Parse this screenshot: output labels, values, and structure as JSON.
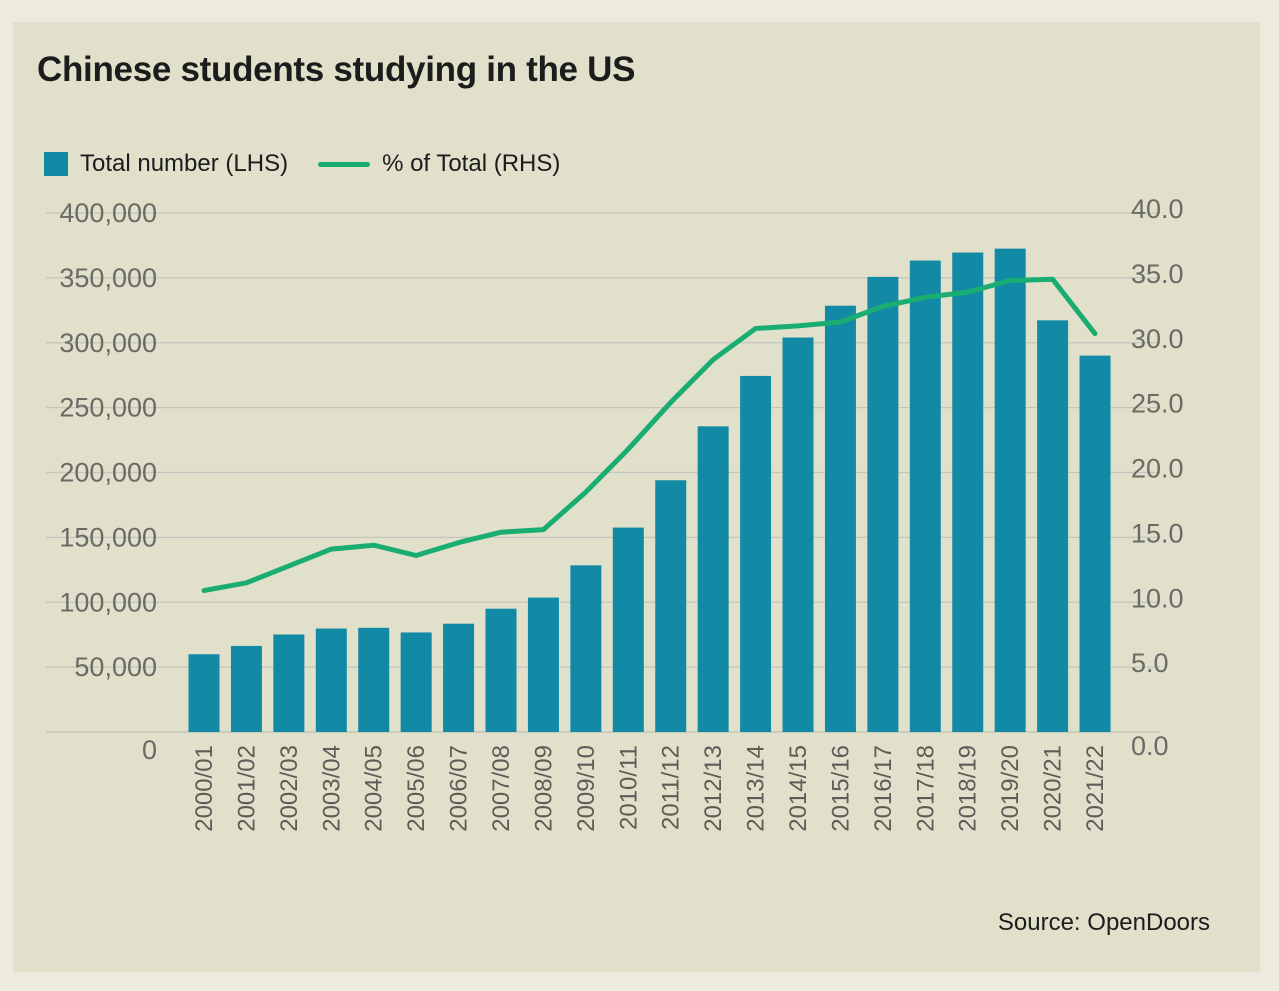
{
  "chart_data": {
    "type": "bar",
    "title": "Chinese students studying in the US",
    "legend": {
      "bar_label": "Total number (LHS)",
      "line_label": "% of Total (RHS)",
      "placement": "top-left"
    },
    "source": "Source: OpenDoors",
    "categories": [
      "2000/01",
      "2001/02",
      "2002/03",
      "2003/04",
      "2004/05",
      "2005/06",
      "2006/07",
      "2007/08",
      "2008/09",
      "2009/10",
      "2010/11",
      "2011/12",
      "2012/13",
      "2013/14",
      "2014/15",
      "2015/16",
      "2016/17",
      "2017/18",
      "2018/19",
      "2019/20",
      "2020/21",
      "2021/22"
    ],
    "series": [
      {
        "name": "Total number (LHS)",
        "type": "bar",
        "axis": "left",
        "values": [
          59939,
          66346,
          75157,
          79738,
          80314,
          76723,
          83467,
          95035,
          103596,
          128475,
          157558,
          194032,
          235597,
          274439,
          304040,
          328547,
          350755,
          363341,
          369548,
          372532,
          317299,
          290086
        ]
      },
      {
        "name": "% of Total (RHS)",
        "type": "line",
        "axis": "right",
        "values": [
          10.9,
          11.5,
          12.8,
          14.1,
          14.4,
          13.6,
          14.6,
          15.4,
          15.6,
          18.5,
          21.8,
          25.4,
          28.7,
          31.1,
          31.3,
          31.6,
          32.8,
          33.5,
          33.9,
          34.8,
          34.9,
          30.7
        ]
      }
    ],
    "y_left": {
      "min": 0,
      "max": 400000,
      "step": 50000,
      "tick_labels": [
        "0",
        "50,000",
        "100,000",
        "150,000",
        "200,000",
        "250,000",
        "300,000",
        "350,000",
        "400,000"
      ]
    },
    "y_right": {
      "min": 0,
      "max": 40,
      "step": 5,
      "tick_labels": [
        "0.0",
        "5.0",
        "10.0",
        "15.0",
        "20.0",
        "25.0",
        "30.0",
        "35.0",
        "40.0"
      ]
    },
    "grid": true,
    "colors": {
      "bar": "#128aa6",
      "line": "#1aad72",
      "grid": "#c4c6bd",
      "background": "#e1e0cb"
    }
  }
}
